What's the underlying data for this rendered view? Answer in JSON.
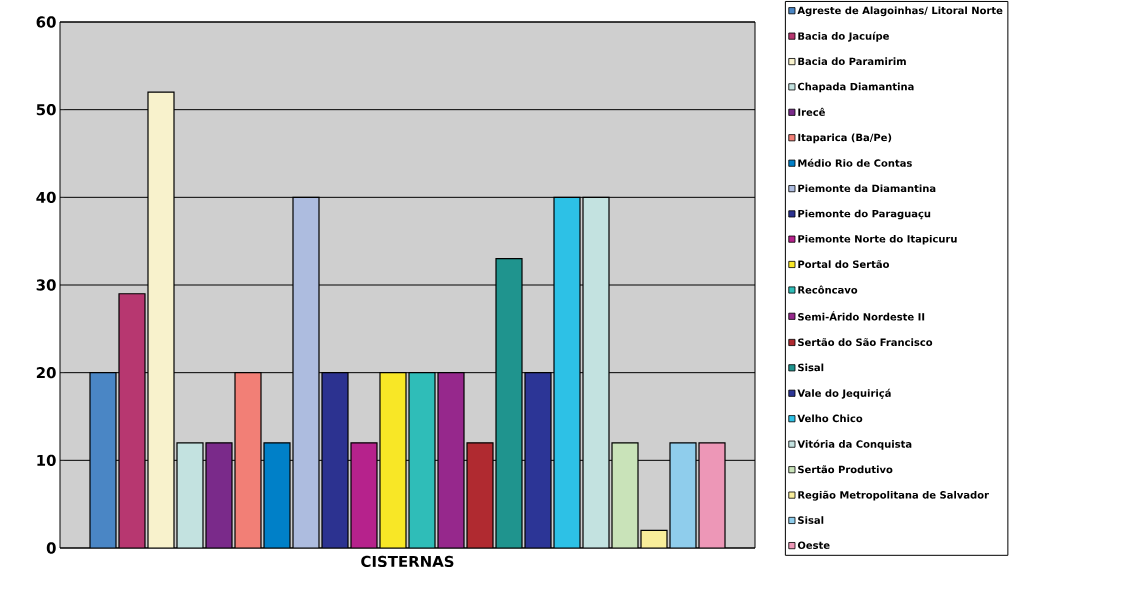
{
  "chart_data": {
    "type": "bar",
    "categories": [
      "CISTERNAS"
    ],
    "series": [
      {
        "name": "Agreste de Alagoinhas/ Litoral Norte",
        "color": "#4a86c5",
        "values": [
          20
        ]
      },
      {
        "name": "Bacia do Jacuípe",
        "color": "#b73770",
        "values": [
          29
        ]
      },
      {
        "name": "Bacia do Paramirim",
        "color": "#f8f2cc",
        "values": [
          52
        ]
      },
      {
        "name": "Chapada Diamantina",
        "color": "#c3e2e0",
        "values": [
          12
        ]
      },
      {
        "name": "Irecê",
        "color": "#7a2a8a",
        "values": [
          12
        ]
      },
      {
        "name": "Itaparica (Ba/Pe)",
        "color": "#f27f76",
        "values": [
          20
        ]
      },
      {
        "name": "Médio Rio de Contas",
        "color": "#0080c8",
        "values": [
          12
        ]
      },
      {
        "name": "Piemonte da Diamantina",
        "color": "#adbcdf",
        "values": [
          40
        ]
      },
      {
        "name": "Piemonte do Paraguaçu",
        "color": "#2c3290",
        "values": [
          20
        ]
      },
      {
        "name": "Piemonte Norte do Itapicuru",
        "color": "#b6228c",
        "values": [
          12
        ]
      },
      {
        "name": "Portal do Sertão",
        "color": "#f8e726",
        "values": [
          20
        ]
      },
      {
        "name": "Recôncavo",
        "color": "#2fbdb8",
        "values": [
          20
        ]
      },
      {
        "name": "Semi-Árido Nordeste II",
        "color": "#96288c",
        "values": [
          20
        ]
      },
      {
        "name": "Sertão do São Francisco",
        "color": "#b02a30",
        "values": [
          12
        ]
      },
      {
        "name": "Sisal",
        "color": "#1f948e",
        "values": [
          33
        ]
      },
      {
        "name": "Vale do Jequiriçá",
        "color": "#2c3596",
        "values": [
          20
        ]
      },
      {
        "name": "Velho Chico",
        "color": "#2dc1e6",
        "values": [
          40
        ]
      },
      {
        "name": "Vitória da Conquista",
        "color": "#c3e2e0",
        "values": [
          40
        ]
      },
      {
        "name": "Sertão Produtivo",
        "color": "#c9e3b9",
        "values": [
          12
        ]
      },
      {
        "name": "Região Metropolitana de Salvador",
        "color": "#f8ed9a",
        "values": [
          2
        ]
      },
      {
        "name": "Sisal",
        "color": "#8fcdec",
        "values": [
          12
        ]
      },
      {
        "name": "Oeste",
        "color": "#ed97b7",
        "values": [
          12
        ]
      }
    ],
    "ylim": [
      0,
      60
    ],
    "yticks": [
      0,
      10,
      20,
      30,
      40,
      50,
      60
    ],
    "grid": "y",
    "legend": "right"
  }
}
